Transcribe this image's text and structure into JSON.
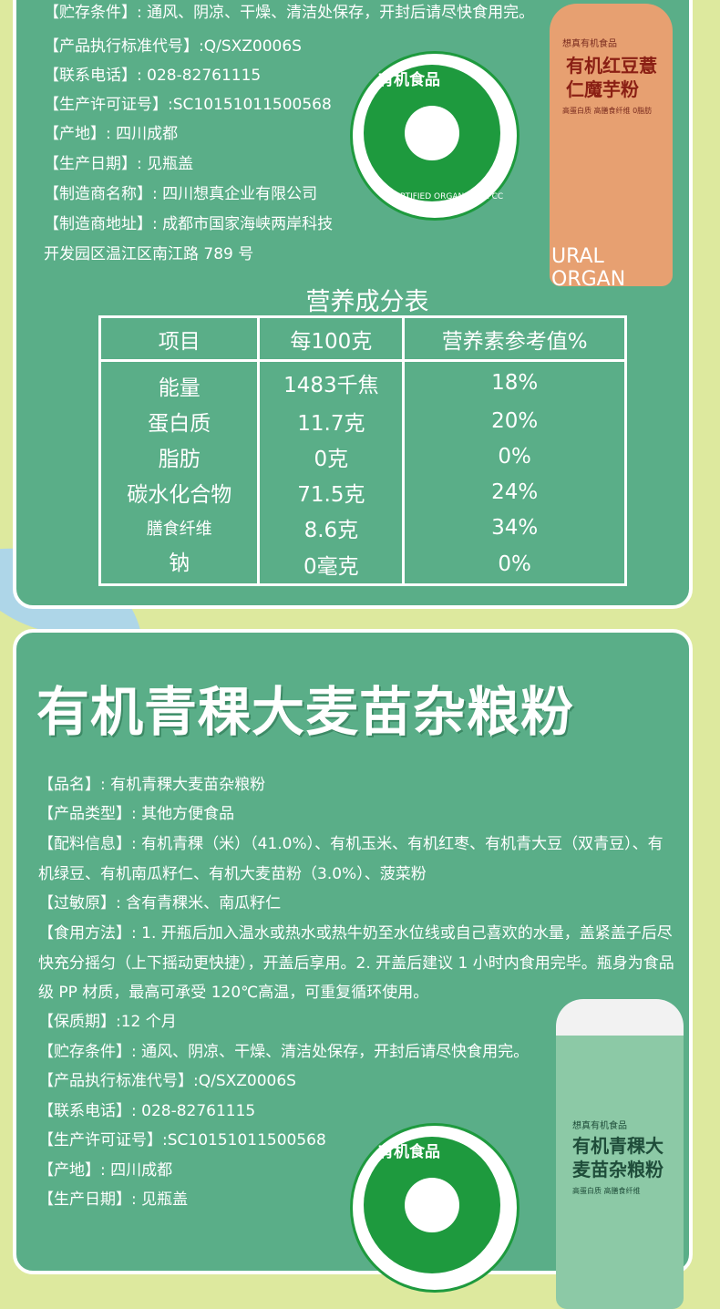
{
  "section1": {
    "lines": [
      "【贮存条件】: 通风、阴凉、干燥、清洁处保存，开封后请尽快食用完。",
      "【产品执行标准代号】:Q/SXZ0006S",
      "【联系电话】: 028-82761115",
      "【生产许可证号】:SC10151011500568",
      "【产地】: 四川成都",
      "【生产日期】: 见瓶盖",
      "【制造商名称】: 四川想真企业有限公司",
      "【制造商地址】: 成都市国家海峡两岸科技",
      "开发园区温江区南江路 789 号"
    ],
    "seal": {
      "label": "有机食品",
      "sub": "CERTIFIED ORGANIC COFCC"
    },
    "bottle": {
      "brand": "想真有机食品",
      "name": "有机红豆薏仁魔芋粉",
      "tagline": "高蛋白质 高膳食纤维 0脂肪",
      "bottom": "URAL ORGAN"
    },
    "nutrition": {
      "title": "营养成分表",
      "headers": [
        "项目",
        "每100克",
        "营养素参考值%"
      ],
      "rows": [
        [
          "能量",
          "1483千焦",
          "18%"
        ],
        [
          "蛋白质",
          "11.7克",
          "20%"
        ],
        [
          "脂肪",
          "0克",
          "0%"
        ],
        [
          "碳水化合物",
          "71.5克",
          "24%"
        ],
        [
          "膳食纤维",
          "8.6克",
          "34%"
        ],
        [
          "钠",
          "0毫克",
          "0%"
        ]
      ]
    }
  },
  "section2": {
    "title": "有机青稞大麦苗杂粮粉",
    "lines": [
      "【品名】: 有机青稞大麦苗杂粮粉",
      "【产品类型】: 其他方便食品",
      "【配料信息】: 有机青稞（米）（41.0%）、有机玉米、有机红枣、有机青大豆（双青豆）、有机绿豆、有机南瓜籽仁、有机大麦苗粉（3.0%）、菠菜粉",
      "【过敏原】: 含有青稞米、南瓜籽仁",
      "【食用方法】: 1. 开瓶后加入温水或热水或热牛奶至水位线或自己喜欢的水量，盖紧盖子后尽快充分摇匀（上下摇动更快捷），开盖后享用。2. 开盖后建议 1 小时内食用完毕。瓶身为食品级 PP 材质，最高可承受 120℃高温，可重复循环使用。",
      "【保质期】:12 个月",
      "【贮存条件】: 通风、阴凉、干燥、清洁处保存，开封后请尽快食用完。",
      "【产品执行标准代号】:Q/SXZ0006S",
      "【联系电话】: 028-82761115",
      "【生产许可证号】:SC10151011500568",
      "【产地】: 四川成都",
      "【生产日期】: 见瓶盖"
    ],
    "seal": {
      "label": "有机食品"
    },
    "bottle": {
      "brand": "想真有机食品",
      "name": "有机青稞大麦苗杂粮粉",
      "tagline": "高蛋白质 高膳食纤维"
    }
  },
  "colors": {
    "panel": "#5aae88",
    "background": "#dde99e",
    "seal": "#1e9a3e"
  }
}
